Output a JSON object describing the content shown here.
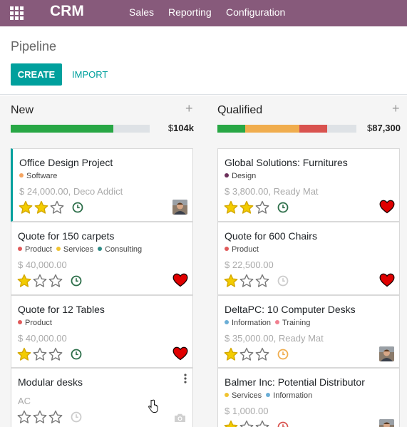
{
  "app": {
    "name": "CRM",
    "menu": [
      "Sales",
      "Reporting",
      "Configuration"
    ]
  },
  "control_panel": {
    "title": "Pipeline",
    "create_label": "CREATE",
    "import_label": "IMPORT"
  },
  "columns": [
    {
      "title": "New",
      "plus": "+",
      "total_currency": "$",
      "total_value": "104k",
      "progress": [
        {
          "color": "#28a745",
          "fraction": 0.74
        },
        {
          "color": "#dee2e6",
          "fraction": 0.26
        }
      ],
      "cards": [
        {
          "title": "Office Design Project",
          "tags": [
            {
              "label": "Software",
              "color": "#f4a460"
            }
          ],
          "amount": "$ 24,000.00, Deco Addict",
          "stars": 2,
          "activity": "green",
          "right": "avatar"
        },
        {
          "title": "Quote for 150 carpets",
          "tags": [
            {
              "label": "Product",
              "color": "#e05a5a"
            },
            {
              "label": "Services",
              "color": "#f0c330"
            },
            {
              "label": "Consulting",
              "color": "#2e8b86"
            }
          ],
          "amount": "$ 40,000.00",
          "stars": 1,
          "activity": "green",
          "right": "heart"
        },
        {
          "title": "Quote for 12 Tables",
          "tags": [
            {
              "label": "Product",
              "color": "#e05a5a"
            }
          ],
          "amount": "$ 40,000.00",
          "stars": 1,
          "activity": "green",
          "right": "heart"
        },
        {
          "title": "Modular desks",
          "tags": [],
          "amount": "AC",
          "stars": 0,
          "activity": "grey",
          "right": "camera"
        }
      ]
    },
    {
      "title": "Qualified",
      "plus": "+",
      "total_currency": "$",
      "total_value": "87,300",
      "progress": [
        {
          "color": "#28a745",
          "fraction": 0.2
        },
        {
          "color": "#f0ad4e",
          "fraction": 0.39
        },
        {
          "color": "#d9534f",
          "fraction": 0.2
        },
        {
          "color": "#dee2e6",
          "fraction": 0.21
        }
      ],
      "cards": [
        {
          "title": "Global Solutions: Furnitures",
          "tags": [
            {
              "label": "Design",
              "color": "#6b2f5a"
            }
          ],
          "amount": "$ 3,800.00, Ready Mat",
          "stars": 2,
          "activity": "green",
          "right": "heart"
        },
        {
          "title": "Quote for 600 Chairs",
          "tags": [
            {
              "label": "Product",
              "color": "#e05a5a"
            }
          ],
          "amount": "$ 22,500.00",
          "stars": 1,
          "activity": "grey",
          "right": "heart"
        },
        {
          "title": "DeltaPC: 10 Computer Desks",
          "tags": [
            {
              "label": "Information",
              "color": "#6baed6"
            },
            {
              "label": "Training",
              "color": "#f08090"
            }
          ],
          "amount": "$ 35,000.00, Ready Mat",
          "stars": 1,
          "activity": "orange",
          "right": "avatar"
        },
        {
          "title": "Balmer Inc: Potential Distributor",
          "tags": [
            {
              "label": "Services",
              "color": "#f0c330"
            },
            {
              "label": "Information",
              "color": "#6baed6"
            }
          ],
          "amount": "$ 1,000.00",
          "stars": 1,
          "activity": "red",
          "right": "avatar"
        }
      ]
    }
  ],
  "colors": {
    "navbar": "#875a7b",
    "primary": "#00a09d",
    "star": "#f3cc00",
    "heart": "#e00000",
    "activity_green": "#2c6e49",
    "activity_orange": "#f0ad4e",
    "activity_red": "#d9534f",
    "activity_grey": "#cccccc"
  },
  "icons": [
    "apps-grid-icon",
    "plus-icon",
    "star-icon",
    "clock-icon",
    "heart-icon",
    "avatar-icon",
    "kebab-menu-icon",
    "camera-icon",
    "hand-cursor-icon"
  ]
}
